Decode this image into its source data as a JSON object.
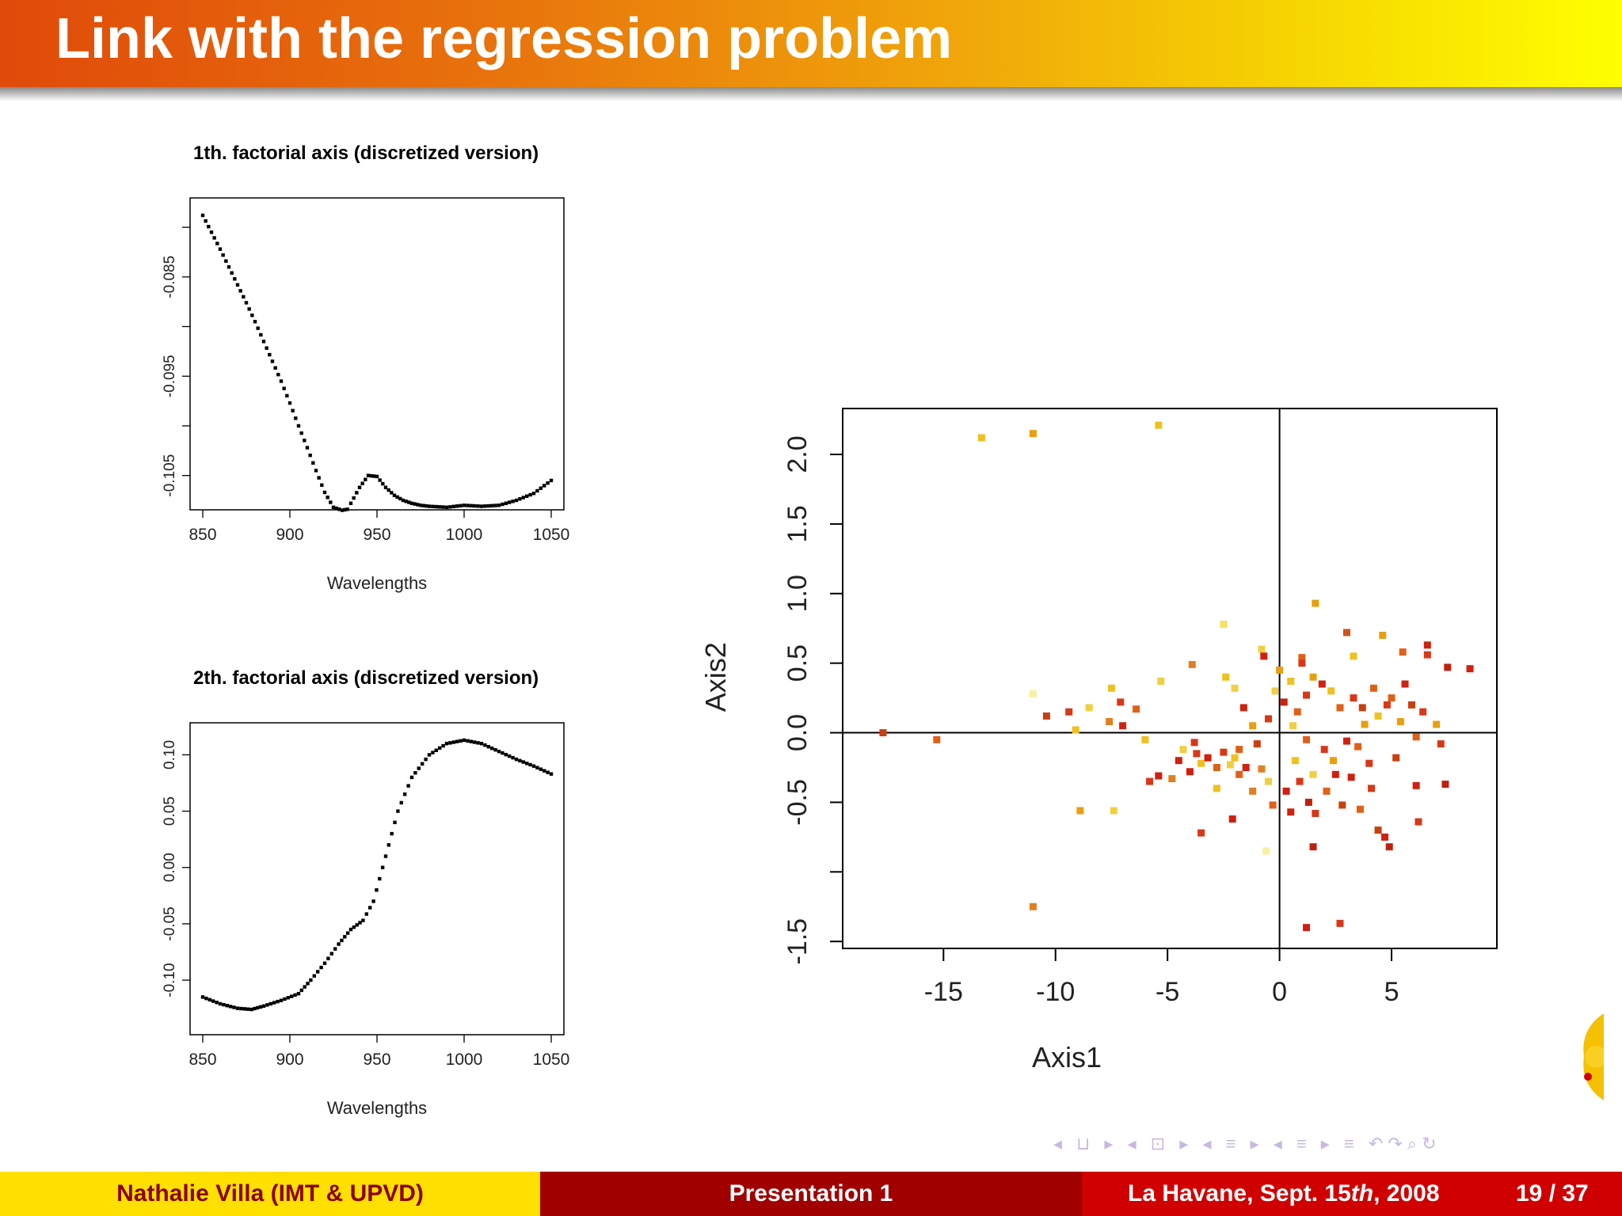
{
  "slide": {
    "title": "Link with the regression problem"
  },
  "footer": {
    "author": "Nathalie Villa  (IMT & UPVD)",
    "presentation": "Presentation 1",
    "venue_prefix": "La Havane, Sept. 15",
    "venue_sup": "th",
    "venue_suffix": ", 2008",
    "page": "19 / 37"
  },
  "nav": {
    "symbols": "◂ ⊔ ▸ ◂ ⊡ ▸ ◂ ≡ ▸ ◂ ≡ ▸   ≡   ↶↷⌕↻"
  },
  "colors": {
    "title_start": "#e04a0a",
    "title_end": "#ffff00",
    "footer_yellow": "#ffe000",
    "footer_darkred": "#a00000",
    "footer_red": "#d00000"
  },
  "chart_data": [
    {
      "type": "scatter",
      "title": "1th. factorial axis (discretized version)",
      "xlabel": "Wavelengths",
      "ylabel": "",
      "xticks": [
        "850",
        "900",
        "950",
        "1000",
        "1050"
      ],
      "yticks": [
        "-0.085",
        "-0.095",
        "-0.105"
      ],
      "xlim": [
        850,
        1050
      ],
      "ylim": [
        -0.1075,
        -0.078
      ],
      "x": [
        850,
        855,
        860,
        865,
        870,
        875,
        880,
        885,
        890,
        895,
        900,
        905,
        910,
        915,
        920,
        925,
        930,
        933,
        935,
        940,
        945,
        950,
        955,
        960,
        965,
        970,
        975,
        980,
        990,
        1000,
        1010,
        1020,
        1030,
        1040,
        1050
      ],
      "y": [
        -0.0788,
        -0.0805,
        -0.0822,
        -0.084,
        -0.0858,
        -0.0876,
        -0.0895,
        -0.0915,
        -0.0935,
        -0.0955,
        -0.0977,
        -0.1,
        -0.1022,
        -0.1045,
        -0.1067,
        -0.1082,
        -0.1085,
        -0.1084,
        -0.1078,
        -0.1062,
        -0.105,
        -0.1051,
        -0.1062,
        -0.107,
        -0.1075,
        -0.1078,
        -0.108,
        -0.1081,
        -0.1082,
        -0.108,
        -0.1081,
        -0.108,
        -0.1075,
        -0.1068,
        -0.1055
      ]
    },
    {
      "type": "scatter",
      "title": "2th. factorial axis (discretized version)",
      "xlabel": "Wavelengths",
      "ylabel": "",
      "xticks": [
        "850",
        "900",
        "950",
        "1000",
        "1050"
      ],
      "yticks": [
        "0.10",
        "0.05",
        "0.00",
        "-0.05",
        "-0.10"
      ],
      "xlim": [
        850,
        1050
      ],
      "ylim": [
        -0.14,
        0.12
      ],
      "x": [
        850,
        860,
        870,
        878,
        885,
        895,
        905,
        912,
        920,
        928,
        935,
        942,
        948,
        955,
        962,
        970,
        980,
        990,
        1000,
        1010,
        1020,
        1030,
        1040,
        1050
      ],
      "y": [
        -0.115,
        -0.121,
        -0.125,
        -0.126,
        -0.123,
        -0.118,
        -0.112,
        -0.1,
        -0.085,
        -0.068,
        -0.055,
        -0.047,
        -0.03,
        0.01,
        0.05,
        0.08,
        0.1,
        0.11,
        0.113,
        0.11,
        0.103,
        0.096,
        0.09,
        0.083
      ]
    },
    {
      "type": "scatter",
      "title": "",
      "xlabel": "Axis1",
      "ylabel": "Axis2",
      "xticks": [
        "-15",
        "-10",
        "-5",
        "0",
        "5"
      ],
      "yticks": [
        "-1.5",
        "-0.5",
        "0.0",
        "0.5",
        "1.0",
        "1.5",
        "2.0"
      ],
      "xlim": [
        -19.5,
        9.7
      ],
      "ylim": [
        -1.55,
        2.33
      ],
      "reference_lines": {
        "x": 0,
        "y": 0
      },
      "points": [
        [
          -13.3,
          2.12,
          "#f0c020"
        ],
        [
          -11.0,
          2.15,
          "#e8a010"
        ],
        [
          -5.4,
          2.21,
          "#f0c020"
        ],
        [
          -11.0,
          -1.25,
          "#e08020"
        ],
        [
          -17.7,
          0.0,
          "#c84010"
        ],
        [
          -15.3,
          -0.05,
          "#e06018"
        ],
        [
          1.6,
          0.93,
          "#e8a010"
        ],
        [
          -2.5,
          0.78,
          "#f8e060"
        ],
        [
          3.0,
          0.72,
          "#d05020"
        ],
        [
          4.6,
          0.7,
          "#e8a010"
        ],
        [
          6.6,
          0.63,
          "#d02010"
        ],
        [
          6.6,
          0.56,
          "#d83818"
        ],
        [
          8.5,
          0.46,
          "#d02010"
        ],
        [
          7.5,
          0.47,
          "#c02010"
        ],
        [
          5.5,
          0.58,
          "#e06018"
        ],
        [
          3.3,
          0.55,
          "#f0c020"
        ],
        [
          1.0,
          0.54,
          "#e06018"
        ],
        [
          0.0,
          0.45,
          "#e8a010"
        ],
        [
          -0.8,
          0.6,
          "#f0d040"
        ],
        [
          -0.7,
          0.55,
          "#d02010"
        ],
        [
          -3.9,
          0.49,
          "#e08020"
        ],
        [
          -5.3,
          0.37,
          "#f0d040"
        ],
        [
          -6.4,
          0.17,
          "#e06018"
        ],
        [
          -7.1,
          0.22,
          "#d83818"
        ],
        [
          -7.5,
          0.32,
          "#f0c020"
        ],
        [
          -7.0,
          0.05,
          "#d02010"
        ],
        [
          -7.6,
          0.08,
          "#e08020"
        ],
        [
          -8.5,
          0.18,
          "#f0d040"
        ],
        [
          -9.4,
          0.15,
          "#d83818"
        ],
        [
          -10.4,
          0.12,
          "#c84010"
        ],
        [
          -11.0,
          0.28,
          "#f8f0a0"
        ],
        [
          -9.1,
          0.02,
          "#f0c020"
        ],
        [
          -6.0,
          -0.05,
          "#f0c020"
        ],
        [
          -5.8,
          -0.35,
          "#d83818"
        ],
        [
          -5.4,
          -0.31,
          "#d02010"
        ],
        [
          -4.8,
          -0.33,
          "#e08020"
        ],
        [
          -4.5,
          -0.2,
          "#d02010"
        ],
        [
          -3.8,
          -0.07,
          "#d83818"
        ],
        [
          -3.5,
          -0.22,
          "#f0c020"
        ],
        [
          -3.2,
          -0.18,
          "#d02010"
        ],
        [
          -2.8,
          -0.25,
          "#e06018"
        ],
        [
          -2.5,
          -0.14,
          "#d83818"
        ],
        [
          -2.2,
          -0.23,
          "#f0d040"
        ],
        [
          -1.8,
          -0.12,
          "#e06018"
        ],
        [
          -1.5,
          -0.25,
          "#d02010"
        ],
        [
          -1.0,
          -0.08,
          "#c84010"
        ],
        [
          -0.8,
          -0.26,
          "#e08020"
        ],
        [
          -0.5,
          -0.35,
          "#f0d040"
        ],
        [
          -0.3,
          -0.52,
          "#e06018"
        ],
        [
          -0.6,
          -0.85,
          "#f8f0a0"
        ],
        [
          -8.9,
          -0.56,
          "#e8a010"
        ],
        [
          -7.4,
          -0.56,
          "#f0d040"
        ],
        [
          -3.5,
          -0.72,
          "#d83818"
        ],
        [
          -2.1,
          -0.62,
          "#d02010"
        ],
        [
          0.5,
          -0.57,
          "#d02010"
        ],
        [
          1.3,
          -0.5,
          "#c02010"
        ],
        [
          1.6,
          -0.58,
          "#d83818"
        ],
        [
          2.1,
          -0.42,
          "#e06018"
        ],
        [
          2.5,
          -0.3,
          "#d02010"
        ],
        [
          2.8,
          -0.52,
          "#c84010"
        ],
        [
          3.2,
          -0.32,
          "#d02010"
        ],
        [
          3.6,
          -0.55,
          "#e06018"
        ],
        [
          4.1,
          -0.4,
          "#d83818"
        ],
        [
          4.4,
          -0.7,
          "#c84010"
        ],
        [
          4.7,
          -0.75,
          "#d02010"
        ],
        [
          4.9,
          -0.82,
          "#c02010"
        ],
        [
          1.5,
          -0.82,
          "#c02010"
        ],
        [
          1.2,
          -1.4,
          "#d02010"
        ],
        [
          2.7,
          -1.37,
          "#d83818"
        ],
        [
          6.2,
          -0.64,
          "#d83818"
        ],
        [
          6.1,
          -0.38,
          "#d02010"
        ],
        [
          7.4,
          -0.37,
          "#c02010"
        ],
        [
          7.2,
          -0.08,
          "#d83818"
        ],
        [
          6.1,
          -0.03,
          "#e06018"
        ],
        [
          7.0,
          0.06,
          "#e8a010"
        ],
        [
          5.6,
          0.35,
          "#d02010"
        ],
        [
          5.9,
          0.2,
          "#c84010"
        ],
        [
          6.4,
          0.15,
          "#d83818"
        ],
        [
          5.0,
          0.25,
          "#e06018"
        ],
        [
          4.4,
          0.12,
          "#f0c020"
        ],
        [
          3.8,
          0.06,
          "#e8a010"
        ],
        [
          3.3,
          0.25,
          "#d83818"
        ],
        [
          2.7,
          0.18,
          "#e06018"
        ],
        [
          2.3,
          0.3,
          "#f0c020"
        ],
        [
          1.9,
          0.35,
          "#d02010"
        ],
        [
          1.5,
          0.4,
          "#e8a010"
        ],
        [
          1.2,
          0.27,
          "#d83818"
        ],
        [
          0.8,
          0.15,
          "#e06018"
        ],
        [
          0.5,
          0.37,
          "#f0c020"
        ],
        [
          0.2,
          0.22,
          "#d02010"
        ],
        [
          -0.2,
          0.3,
          "#f0d040"
        ],
        [
          -0.5,
          0.1,
          "#d83818"
        ],
        [
          -1.2,
          0.05,
          "#e8a010"
        ],
        [
          -1.6,
          0.18,
          "#d02010"
        ],
        [
          -2.0,
          0.32,
          "#f0d040"
        ],
        [
          -2.4,
          0.4,
          "#f0c020"
        ],
        [
          0.7,
          -0.2,
          "#f0c020"
        ],
        [
          1.2,
          -0.05,
          "#e06018"
        ],
        [
          1.5,
          -0.3,
          "#f0d040"
        ],
        [
          2.0,
          -0.12,
          "#d83818"
        ],
        [
          2.4,
          -0.2,
          "#e8a010"
        ],
        [
          3.0,
          -0.06,
          "#d02010"
        ],
        [
          3.5,
          -0.1,
          "#e06018"
        ],
        [
          4.0,
          -0.22,
          "#d83818"
        ],
        [
          5.2,
          -0.18,
          "#c84010"
        ],
        [
          -1.2,
          -0.42,
          "#e08020"
        ],
        [
          0.3,
          -0.42,
          "#d02010"
        ],
        [
          0.9,
          -0.35,
          "#d83818"
        ],
        [
          -2.8,
          -0.4,
          "#f0c020"
        ],
        [
          -1.8,
          -0.3,
          "#e06018"
        ],
        [
          -4.0,
          -0.28,
          "#d02010"
        ],
        [
          -3.7,
          -0.15,
          "#d83818"
        ],
        [
          -4.3,
          -0.12,
          "#f0d040"
        ],
        [
          -2.0,
          -0.18,
          "#f0c020"
        ],
        [
          1.0,
          0.5,
          "#d83818"
        ],
        [
          0.6,
          0.05,
          "#f0d040"
        ],
        [
          4.2,
          0.32,
          "#e06018"
        ],
        [
          3.7,
          0.18,
          "#c84010"
        ],
        [
          4.8,
          0.2,
          "#d83818"
        ],
        [
          5.4,
          0.08,
          "#e8a010"
        ]
      ]
    }
  ]
}
